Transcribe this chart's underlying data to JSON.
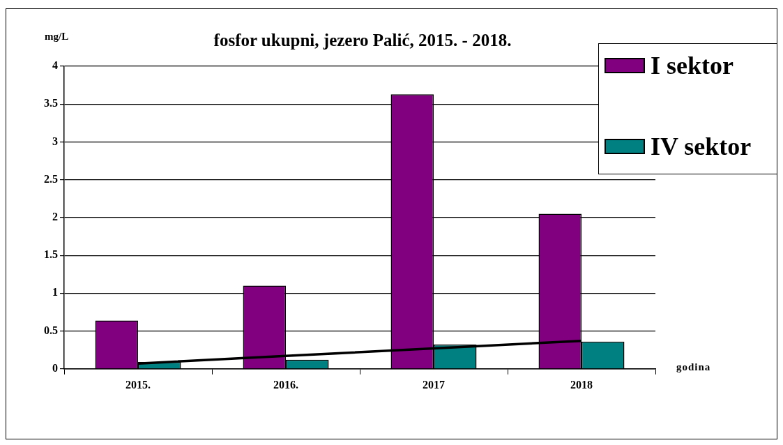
{
  "chart_data": {
    "type": "bar",
    "title": "fosfor ukupni, jezero Palić, 2015. - 2018.",
    "xlabel": "godina",
    "ylabel": "mg/L",
    "categories": [
      "2015.",
      "2016.",
      "2017",
      "2018"
    ],
    "series": [
      {
        "name": "I sektor",
        "color": "#800080",
        "values": [
          0.64,
          1.1,
          3.63,
          2.05
        ]
      },
      {
        "name": "IV sektor",
        "color": "#008080",
        "values": [
          0.09,
          0.12,
          0.32,
          0.36
        ]
      },
      {
        "type": "line",
        "color": "#000000",
        "values": [
          0.07,
          0.17,
          0.27,
          0.37
        ],
        "marker": "none"
      }
    ],
    "ylim": [
      0,
      4
    ],
    "yticks": [
      0,
      0.5,
      1,
      1.5,
      2,
      2.5,
      3,
      3.5,
      4
    ],
    "grid": "y",
    "legend": "top right"
  }
}
